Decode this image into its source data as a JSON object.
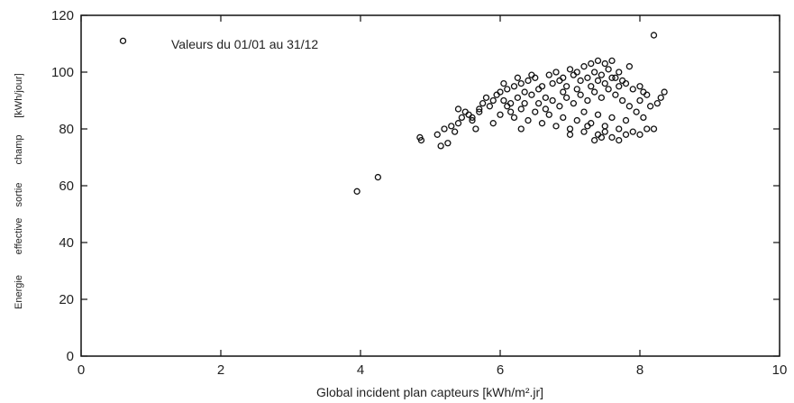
{
  "chart_data": {
    "type": "scatter",
    "title": "",
    "annotation": "Valeurs du 01/01 au 31/12",
    "xlabel": "Global incident plan capteurs [kWh/m².jr]",
    "ylabel_words": [
      "Energie",
      "effective",
      "sortie",
      "champ",
      "[kWh/jour]"
    ],
    "xlim": [
      0,
      10
    ],
    "ylim": [
      0,
      120
    ],
    "xticks": [
      0,
      2,
      4,
      6,
      8,
      10
    ],
    "yticks": [
      0,
      20,
      40,
      60,
      80,
      100,
      120
    ],
    "grid": false,
    "marker": "open-circle",
    "color": "#111111",
    "points": [
      [
        0.6,
        111
      ],
      [
        3.95,
        58
      ],
      [
        4.25,
        63
      ],
      [
        4.85,
        77
      ],
      [
        4.87,
        76
      ],
      [
        5.1,
        78
      ],
      [
        5.15,
        74
      ],
      [
        5.25,
        75
      ],
      [
        5.3,
        81
      ],
      [
        5.35,
        79
      ],
      [
        5.4,
        82
      ],
      [
        5.45,
        84
      ],
      [
        5.5,
        86
      ],
      [
        5.55,
        85
      ],
      [
        5.6,
        83
      ],
      [
        5.65,
        80
      ],
      [
        5.7,
        87
      ],
      [
        5.75,
        89
      ],
      [
        5.8,
        91
      ],
      [
        5.85,
        88
      ],
      [
        5.9,
        90
      ],
      [
        5.95,
        92
      ],
      [
        6.0,
        93
      ],
      [
        6.05,
        90
      ],
      [
        6.1,
        94
      ],
      [
        6.15,
        89
      ],
      [
        6.2,
        95
      ],
      [
        6.25,
        91
      ],
      [
        6.3,
        96
      ],
      [
        6.35,
        93
      ],
      [
        6.4,
        97
      ],
      [
        6.45,
        92
      ],
      [
        6.5,
        98
      ],
      [
        6.55,
        94
      ],
      [
        6.6,
        95
      ],
      [
        6.65,
        91
      ],
      [
        6.7,
        99
      ],
      [
        6.75,
        96
      ],
      [
        6.8,
        100
      ],
      [
        6.85,
        97
      ],
      [
        6.9,
        98
      ],
      [
        6.95,
        95
      ],
      [
        7.0,
        101
      ],
      [
        7.05,
        99
      ],
      [
        7.1,
        100
      ],
      [
        7.15,
        97
      ],
      [
        7.2,
        102
      ],
      [
        7.25,
        98
      ],
      [
        7.3,
        103
      ],
      [
        7.35,
        100
      ],
      [
        7.4,
        104
      ],
      [
        7.45,
        99
      ],
      [
        7.5,
        103
      ],
      [
        7.55,
        101
      ],
      [
        7.6,
        104
      ],
      [
        7.65,
        98
      ],
      [
        7.7,
        100
      ],
      [
        7.75,
        97
      ],
      [
        7.85,
        102
      ],
      [
        7.9,
        94
      ],
      [
        8.0,
        95
      ],
      [
        8.05,
        93
      ],
      [
        8.1,
        92
      ],
      [
        8.2,
        113
      ],
      [
        8.3,
        91
      ],
      [
        8.35,
        93
      ],
      [
        6.0,
        85
      ],
      [
        6.1,
        88
      ],
      [
        6.2,
        84
      ],
      [
        6.3,
        87
      ],
      [
        6.4,
        83
      ],
      [
        6.5,
        86
      ],
      [
        6.6,
        82
      ],
      [
        6.7,
        85
      ],
      [
        6.8,
        81
      ],
      [
        6.9,
        84
      ],
      [
        7.0,
        80
      ],
      [
        7.1,
        83
      ],
      [
        7.2,
        79
      ],
      [
        7.3,
        82
      ],
      [
        7.4,
        78
      ],
      [
        7.5,
        81
      ],
      [
        7.6,
        77
      ],
      [
        7.7,
        80
      ],
      [
        7.8,
        78
      ],
      [
        7.9,
        79
      ],
      [
        8.0,
        78
      ],
      [
        8.1,
        80
      ],
      [
        8.2,
        80
      ],
      [
        7.35,
        76
      ],
      [
        7.45,
        77
      ],
      [
        6.55,
        89
      ],
      [
        6.65,
        87
      ],
      [
        6.75,
        90
      ],
      [
        6.85,
        88
      ],
      [
        6.95,
        91
      ],
      [
        7.05,
        89
      ],
      [
        7.15,
        92
      ],
      [
        7.25,
        90
      ],
      [
        7.35,
        93
      ],
      [
        7.45,
        91
      ],
      [
        7.55,
        94
      ],
      [
        7.65,
        92
      ],
      [
        7.75,
        90
      ],
      [
        7.85,
        88
      ],
      [
        7.95,
        86
      ],
      [
        8.05,
        84
      ],
      [
        7.2,
        86
      ],
      [
        7.4,
        85
      ],
      [
        7.6,
        84
      ],
      [
        7.8,
        83
      ],
      [
        6.3,
        80
      ],
      [
        5.9,
        82
      ],
      [
        5.6,
        84
      ],
      [
        6.05,
        96
      ],
      [
        6.45,
        99
      ],
      [
        6.25,
        98
      ],
      [
        7.5,
        96
      ],
      [
        7.7,
        95
      ],
      [
        7.3,
        95
      ],
      [
        6.9,
        93
      ],
      [
        7.1,
        94
      ],
      [
        7.4,
        97
      ],
      [
        7.6,
        98
      ],
      [
        7.8,
        96
      ],
      [
        8.0,
        90
      ],
      [
        8.15,
        88
      ],
      [
        8.25,
        89
      ],
      [
        5.2,
        80
      ],
      [
        5.4,
        87
      ],
      [
        5.7,
        86
      ],
      [
        6.15,
        86
      ],
      [
        6.35,
        89
      ],
      [
        7.0,
        78
      ],
      [
        7.25,
        81
      ],
      [
        7.5,
        79
      ],
      [
        7.7,
        76
      ]
    ]
  }
}
